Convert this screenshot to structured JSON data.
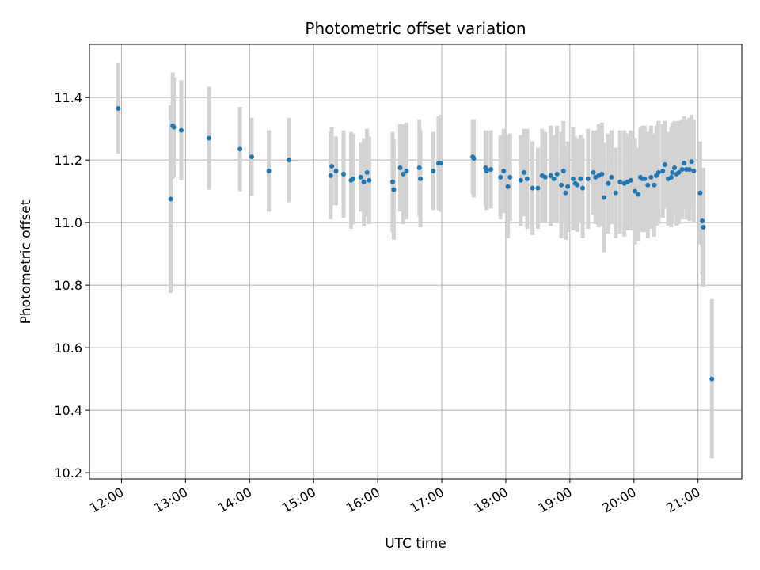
{
  "chart_data": {
    "type": "scatter",
    "title": "Photometric offset variation",
    "xlabel": "UTC time",
    "ylabel": "Photometric offset",
    "grid": true,
    "xlim": [
      "11:30",
      "21:41"
    ],
    "ylim": [
      10.18,
      11.57
    ],
    "x_ticks": [
      "12:00",
      "13:00",
      "14:00",
      "15:00",
      "16:00",
      "17:00",
      "18:00",
      "19:00",
      "20:00",
      "21:00"
    ],
    "y_ticks": [
      "10.2",
      "10.4",
      "10.6",
      "10.8",
      "11.0",
      "11.2",
      "11.4"
    ],
    "colors": {
      "point": "#1f77b4",
      "error_bar": "#d3d3d3",
      "grid": "#b0b0b0"
    },
    "series": [
      {
        "x": [
          "11:57",
          "12:46",
          "12:48",
          "12:49",
          "12:56",
          "13:22",
          "13:51",
          "14:02",
          "14:18",
          "14:37",
          "15:16",
          "15:17",
          "15:21",
          "15:28",
          "15:35",
          "15:37",
          "15:44",
          "15:47",
          "15:50",
          "15:52",
          "16:14",
          "16:15",
          "16:21",
          "16:24",
          "16:27",
          "16:39",
          "16:40",
          "16:52",
          "16:57",
          "16:59",
          "17:29",
          "17:30",
          "17:41",
          "17:42",
          "17:46",
          "17:55",
          "17:58",
          "18:02",
          "18:04",
          "18:14",
          "18:17",
          "18:20",
          "18:25",
          "18:30",
          "18:34",
          "18:37",
          "18:42",
          "18:45",
          "18:48",
          "18:52",
          "18:54",
          "18:56",
          "18:58",
          "19:03",
          "19:05",
          "19:07",
          "19:10",
          "19:12",
          "19:17",
          "19:22",
          "19:24",
          "19:27",
          "19:30",
          "19:32",
          "19:36",
          "19:39",
          "19:43",
          "19:47",
          "19:51",
          "19:54",
          "19:57",
          "20:01",
          "20:04",
          "20:06",
          "20:08",
          "20:10",
          "20:13",
          "20:16",
          "20:19",
          "20:21",
          "20:23",
          "20:27",
          "20:29",
          "20:32",
          "20:35",
          "20:36",
          "20:38",
          "20:40",
          "20:42",
          "20:45",
          "20:47",
          "20:49",
          "20:52",
          "20:54",
          "20:56",
          "21:02",
          "21:04",
          "21:05",
          "21:13"
        ],
        "y": [
          11.365,
          11.075,
          11.31,
          11.305,
          11.295,
          11.27,
          11.235,
          11.21,
          11.165,
          11.2,
          11.15,
          11.18,
          11.165,
          11.155,
          11.135,
          11.14,
          11.145,
          11.13,
          11.16,
          11.135,
          11.13,
          11.105,
          11.175,
          11.155,
          11.165,
          11.175,
          11.14,
          11.165,
          11.19,
          11.19,
          11.21,
          11.205,
          11.175,
          11.165,
          11.17,
          11.145,
          11.165,
          11.115,
          11.145,
          11.135,
          11.16,
          11.14,
          11.11,
          11.11,
          11.15,
          11.145,
          11.15,
          11.14,
          11.155,
          11.12,
          11.165,
          11.095,
          11.115,
          11.14,
          11.125,
          11.12,
          11.14,
          11.11,
          11.14,
          11.16,
          11.145,
          11.15,
          11.155,
          11.08,
          11.125,
          11.145,
          11.095,
          11.13,
          11.125,
          11.13,
          11.135,
          11.1,
          11.09,
          11.145,
          11.14,
          11.14,
          11.12,
          11.145,
          11.12,
          11.15,
          11.16,
          11.165,
          11.185,
          11.14,
          11.145,
          11.16,
          11.175,
          11.155,
          11.16,
          11.17,
          11.19,
          11.17,
          11.17,
          11.195,
          11.165,
          11.095,
          11.005,
          10.985,
          10.5
        ],
        "yerr": [
          0.145,
          0.3,
          0.17,
          0.16,
          0.16,
          0.165,
          0.135,
          0.125,
          0.13,
          0.135,
          0.14,
          0.125,
          0.11,
          0.14,
          0.155,
          0.145,
          0.11,
          0.14,
          0.14,
          0.14,
          0.16,
          0.16,
          0.14,
          0.16,
          0.155,
          0.155,
          0.155,
          0.125,
          0.15,
          0.155,
          0.12,
          0.125,
          0.12,
          0.125,
          0.125,
          0.135,
          0.135,
          0.165,
          0.14,
          0.145,
          0.14,
          0.16,
          0.15,
          0.13,
          0.15,
          0.145,
          0.16,
          0.14,
          0.155,
          0.17,
          0.16,
          0.15,
          0.145,
          0.165,
          0.15,
          0.15,
          0.14,
          0.16,
          0.16,
          0.135,
          0.15,
          0.165,
          0.165,
          0.175,
          0.16,
          0.15,
          0.145,
          0.165,
          0.17,
          0.155,
          0.16,
          0.17,
          0.15,
          0.16,
          0.17,
          0.17,
          0.17,
          0.165,
          0.165,
          0.16,
          0.165,
          0.15,
          0.14,
          0.15,
          0.16,
          0.16,
          0.15,
          0.165,
          0.165,
          0.16,
          0.15,
          0.16,
          0.165,
          0.15,
          0.165,
          0.165,
          0.17,
          0.19,
          0.255
        ]
      }
    ]
  }
}
